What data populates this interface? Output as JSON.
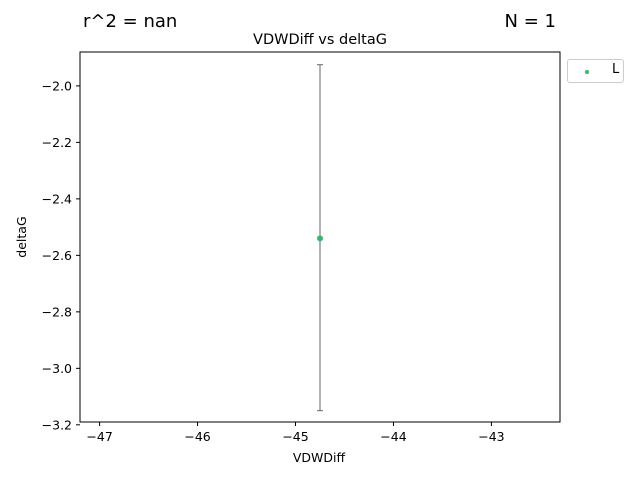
{
  "header": {
    "r2_text": "r^2 = nan",
    "n_text": "N = 1"
  },
  "chart_data": {
    "type": "scatter",
    "title": "VDWDiff vs deltaG",
    "xlabel": "VDWDiff",
    "ylabel": "deltaG",
    "xlim": [
      -47.2,
      -42.3
    ],
    "ylim": [
      -3.19,
      -1.88
    ],
    "xticks": [
      -47,
      -46,
      -45,
      -44,
      -43
    ],
    "yticks": [
      -3.2,
      -3.0,
      -2.8,
      -2.6,
      -2.4,
      -2.2,
      -2.0
    ],
    "ytick_labels": [
      "−3.2",
      "−3.0",
      "−2.8",
      "−2.6",
      "−2.4",
      "−2.2",
      "−2.0"
    ],
    "xtick_labels": [
      "−47",
      "−46",
      "−45",
      "−44",
      "−43"
    ],
    "grid": false,
    "legend_position": "outside-top-right",
    "series": [
      {
        "name": "L",
        "color": "#3cb371",
        "points": [
          {
            "x": -44.75,
            "y": -2.54,
            "err_low": -3.15,
            "err_high": -1.925
          }
        ]
      }
    ],
    "errorbar_color": "#666666"
  }
}
